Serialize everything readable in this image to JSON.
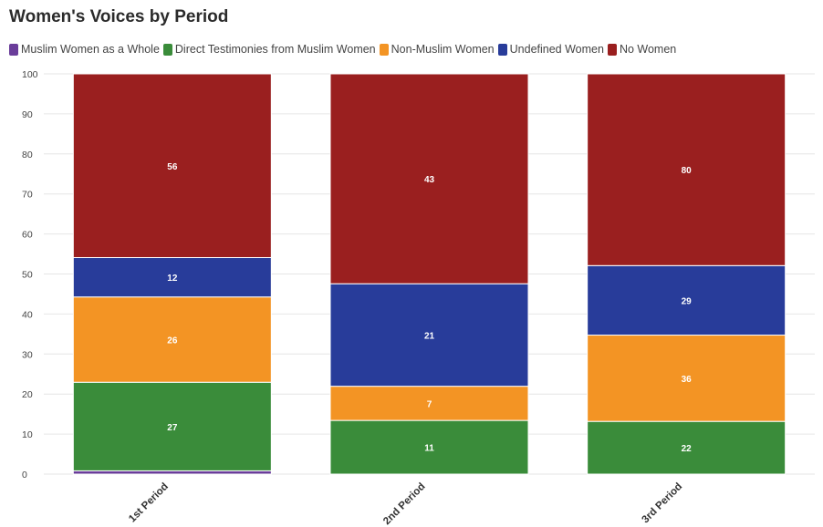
{
  "chart_data": {
    "type": "bar",
    "stacked": true,
    "normalized": true,
    "title": "Women's Voices by Period",
    "xlabel": "",
    "ylabel": "",
    "ylim": [
      0,
      100
    ],
    "yticks": [
      0,
      10,
      20,
      30,
      40,
      50,
      60,
      70,
      80,
      90,
      100
    ],
    "categories": [
      "1st Period",
      "2nd Period",
      "3rd Period"
    ],
    "legend_position": "top-left",
    "grid": true,
    "series": [
      {
        "name": "Muslim Women as a Whole",
        "color": "#6a3d9a",
        "values": [
          1,
          0,
          0
        ],
        "labels": [
          "",
          "",
          ""
        ]
      },
      {
        "name": "Direct Testimonies from Muslim Women",
        "color": "#3a8c3a",
        "values": [
          27,
          11,
          22
        ],
        "labels": [
          "27",
          "11",
          "22"
        ]
      },
      {
        "name": "Non-Muslim Women",
        "color": "#f39424",
        "values": [
          26,
          7,
          36
        ],
        "labels": [
          "26",
          "7",
          "36"
        ]
      },
      {
        "name": "Undefined Women",
        "color": "#283c9a",
        "values": [
          12,
          21,
          29
        ],
        "labels": [
          "12",
          "21",
          "29"
        ]
      },
      {
        "name": "No Women",
        "color": "#9a1f1f",
        "values": [
          56,
          43,
          80
        ],
        "labels": [
          "56",
          "43",
          "80"
        ]
      }
    ]
  }
}
